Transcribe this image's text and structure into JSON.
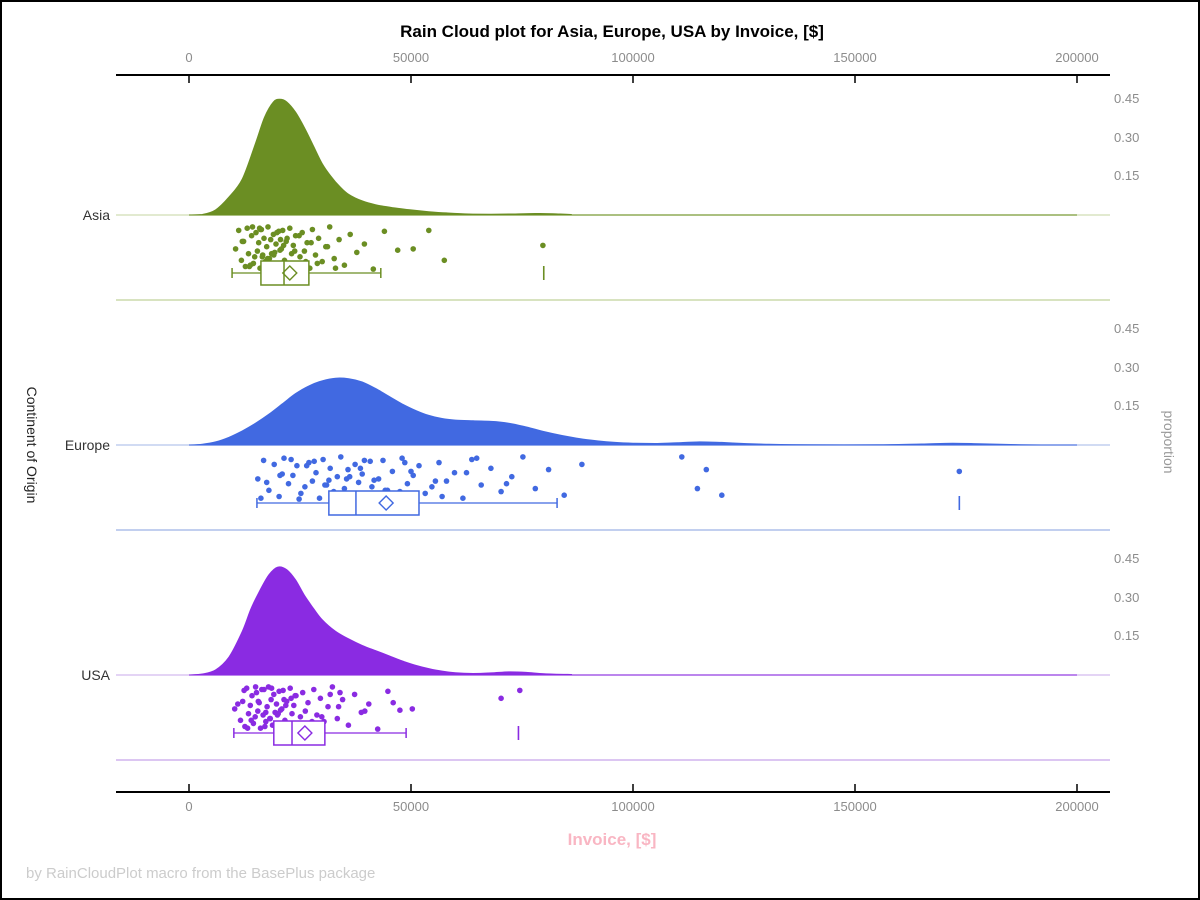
{
  "title": "Rain Cloud plot for Asia, Europe, USA by Invoice, [$]",
  "x_axis": {
    "label": "Invoice, [$]",
    "tick_labels": [
      "0",
      "50000",
      "100000",
      "150000",
      "200000"
    ],
    "tick_values": [
      0,
      50000,
      100000,
      150000,
      200000
    ],
    "min": 0,
    "max": 200000
  },
  "y_axis": {
    "label": "Continent of Origin",
    "categories": [
      "Asia",
      "Europe",
      "USA"
    ]
  },
  "y2_axis": {
    "label": "proportion",
    "tick_labels": [
      "0.45",
      "0.30",
      "0.15"
    ],
    "tick_values": [
      0.45,
      0.3,
      0.15
    ]
  },
  "footer": "by RainCloudPlot macro from the BasePlus package",
  "colors": {
    "asia": "#6B8E23",
    "asia_light": "#D8E3C0",
    "europe": "#4169E1",
    "europe_light": "#C2CFEF",
    "usa": "#8A2BE2",
    "usa_light": "#DCC6F2",
    "tick_text": "#8C8C8C",
    "category_text": "#333333",
    "x_label_pink": "#F9B6C3",
    "footer_gray": "#CCCCCC",
    "axis_line": "#000000",
    "background": "#FFFFFF"
  },
  "chart_data": {
    "type": "raincloud (half-violin density + jittered rain points + box plot with mean diamond)",
    "x_unit": "USD",
    "xlim": [
      0,
      200000
    ],
    "proportion_ticks": [
      0.15,
      0.3,
      0.45
    ],
    "rain_jitter_cycle": [
      0.52,
      0.1,
      0.78,
      0.35,
      0.92,
      0.05,
      0.63,
      0.44,
      0.22,
      0.85,
      0.7,
      0.15,
      0.57,
      0.38,
      0.96,
      0.08,
      0.66,
      0.28,
      0.81,
      0.47,
      0.02,
      0.74,
      0.31,
      0.89,
      0.19,
      0.6,
      0.41,
      0.98,
      0.12,
      0.55
    ],
    "groups": [
      {
        "name": "Asia",
        "color": "#6B8E23",
        "color_light": "#D8E3C0",
        "density": [
          [
            0,
            0
          ],
          [
            3000,
            0.002
          ],
          [
            6000,
            0.02
          ],
          [
            9000,
            0.07
          ],
          [
            12000,
            0.14
          ],
          [
            15000,
            0.28
          ],
          [
            17000,
            0.38
          ],
          [
            19000,
            0.44
          ],
          [
            20500,
            0.45
          ],
          [
            22000,
            0.44
          ],
          [
            24000,
            0.4
          ],
          [
            26000,
            0.34
          ],
          [
            28000,
            0.27
          ],
          [
            30000,
            0.2
          ],
          [
            32000,
            0.15
          ],
          [
            34000,
            0.11
          ],
          [
            36000,
            0.08
          ],
          [
            39000,
            0.055
          ],
          [
            42000,
            0.04
          ],
          [
            46000,
            0.028
          ],
          [
            50000,
            0.02
          ],
          [
            54000,
            0.013
          ],
          [
            58000,
            0.008
          ],
          [
            63000,
            0.004
          ],
          [
            68000,
            0.003
          ],
          [
            73000,
            0.004
          ],
          [
            78000,
            0.006
          ],
          [
            82000,
            0.005
          ],
          [
            86000,
            0.002
          ],
          [
            92000,
            0
          ],
          [
            200000,
            0
          ]
        ],
        "box": {
          "whisker_low": 9700,
          "q1": 16200,
          "median": 21400,
          "q3": 27000,
          "whisker_high": 43200,
          "mean": 22700,
          "far_outliers": [
            79900
          ]
        },
        "rain_values": [
          10500,
          11200,
          11800,
          12300,
          12700,
          13100,
          13400,
          79700,
          14100,
          14500,
          14800,
          15100,
          15400,
          15700,
          16000,
          16300,
          16600,
          16900,
          17200,
          17500,
          17800,
          18100,
          18400,
          18700,
          19000,
          19300,
          19600,
          19900,
          20200,
          20500,
          20800,
          21100,
          21500,
          21900,
          22300,
          22700,
          23100,
          23500,
          24000,
          24500,
          25000,
          25500,
          26000,
          26600,
          27200,
          27800,
          28500,
          29200,
          30000,
          30800,
          31700,
          32700,
          33800,
          35000,
          36300,
          37800,
          39500,
          41500,
          44000,
          47000,
          50500,
          54000,
          57500,
          12000,
          13600,
          15900,
          18600,
          21300,
          24800,
          28900,
          16500,
          19800,
          23800,
          27500,
          33000,
          16100,
          19100,
          22100,
          26300,
          31200,
          14300,
          17700,
          20600,
          13800
        ]
      },
      {
        "name": "Europe",
        "color": "#4169E1",
        "color_light": "#C2CFEF",
        "density": [
          [
            0,
            0
          ],
          [
            3000,
            0.003
          ],
          [
            6000,
            0.012
          ],
          [
            9000,
            0.03
          ],
          [
            12000,
            0.055
          ],
          [
            15000,
            0.085
          ],
          [
            18000,
            0.12
          ],
          [
            21000,
            0.16
          ],
          [
            24000,
            0.2
          ],
          [
            27000,
            0.23
          ],
          [
            30000,
            0.25
          ],
          [
            33000,
            0.26
          ],
          [
            36000,
            0.258
          ],
          [
            39000,
            0.245
          ],
          [
            42000,
            0.22
          ],
          [
            45000,
            0.19
          ],
          [
            48000,
            0.16
          ],
          [
            51000,
            0.135
          ],
          [
            54000,
            0.115
          ],
          [
            57000,
            0.103
          ],
          [
            60000,
            0.097
          ],
          [
            64000,
            0.094
          ],
          [
            68000,
            0.092
          ],
          [
            72000,
            0.085
          ],
          [
            76000,
            0.07
          ],
          [
            80000,
            0.052
          ],
          [
            84000,
            0.037
          ],
          [
            88000,
            0.025
          ],
          [
            92000,
            0.016
          ],
          [
            96000,
            0.01
          ],
          [
            100000,
            0.007
          ],
          [
            105000,
            0.006
          ],
          [
            110000,
            0.009
          ],
          [
            115000,
            0.012
          ],
          [
            120000,
            0.01
          ],
          [
            125000,
            0.006
          ],
          [
            130000,
            0.003
          ],
          [
            140000,
            0.001
          ],
          [
            155000,
            0.001
          ],
          [
            165000,
            0.004
          ],
          [
            172000,
            0.007
          ],
          [
            178000,
            0.005
          ],
          [
            185000,
            0.002
          ],
          [
            192000,
            0
          ],
          [
            200000,
            0
          ]
        ],
        "box": {
          "whisker_low": 15300,
          "q1": 31500,
          "median": 37600,
          "q3": 51800,
          "whisker_high": 82900,
          "mean": 44400,
          "far_outliers": [
            173500
          ]
        },
        "rain_values": [
          15500,
          16800,
          18000,
          173500,
          20300,
          21400,
          22400,
          23400,
          24300,
          25200,
          26100,
          27000,
          27800,
          28600,
          29400,
          30200,
          31000,
          31800,
          32600,
          33400,
          34200,
          35000,
          35800,
          36600,
          37400,
          38200,
          39000,
          39900,
          40800,
          41700,
          42700,
          43700,
          44700,
          45800,
          46900,
          48000,
          49200,
          50500,
          51800,
          53200,
          54700,
          56300,
          58000,
          59800,
          61700,
          63700,
          65800,
          68000,
          70300,
          72700,
          75200,
          78000,
          81000,
          84500,
          88500,
          17500,
          21000,
          24800,
          28200,
          31500,
          35500,
          39500,
          44200,
          50000,
          57000,
          64800,
          71500,
          20500,
          26500,
          33800,
          41200,
          48600,
          55500,
          62500,
          16200,
          23000,
          30600,
          38600,
          47500,
          36200,
          111000,
          114500,
          116500,
          120000,
          19200
        ]
      },
      {
        "name": "USA",
        "color": "#8A2BE2",
        "color_light": "#DCC6F2",
        "density": [
          [
            0,
            0
          ],
          [
            3000,
            0.004
          ],
          [
            6000,
            0.02
          ],
          [
            9000,
            0.07
          ],
          [
            12000,
            0.17
          ],
          [
            14000,
            0.26
          ],
          [
            16000,
            0.33
          ],
          [
            18000,
            0.39
          ],
          [
            20000,
            0.42
          ],
          [
            22000,
            0.41
          ],
          [
            24000,
            0.37
          ],
          [
            26000,
            0.31
          ],
          [
            28000,
            0.26
          ],
          [
            30000,
            0.215
          ],
          [
            33000,
            0.17
          ],
          [
            36000,
            0.14
          ],
          [
            39000,
            0.115
          ],
          [
            42000,
            0.095
          ],
          [
            45000,
            0.075
          ],
          [
            48000,
            0.055
          ],
          [
            51000,
            0.038
          ],
          [
            54000,
            0.025
          ],
          [
            57000,
            0.015
          ],
          [
            60000,
            0.009
          ],
          [
            64000,
            0.006
          ],
          [
            68000,
            0.008
          ],
          [
            72000,
            0.012
          ],
          [
            76000,
            0.01
          ],
          [
            80000,
            0.005
          ],
          [
            86000,
            0.002
          ],
          [
            92000,
            0
          ],
          [
            200000,
            0
          ]
        ],
        "box": {
          "whisker_low": 10100,
          "q1": 19100,
          "median": 23200,
          "q3": 30600,
          "whisker_high": 48900,
          "mean": 26100,
          "far_outliers": [
            74200
          ]
        },
        "rain_values": [
          10300,
          74500,
          11600,
          12100,
          12600,
          13000,
          13400,
          13800,
          14200,
          14500,
          14900,
          15200,
          15500,
          15800,
          16100,
          16400,
          16700,
          70300,
          17300,
          17600,
          17900,
          18200,
          18500,
          18800,
          19100,
          19400,
          19700,
          20000,
          20300,
          20600,
          20900,
          21200,
          21600,
          22000,
          22400,
          22800,
          23200,
          23600,
          24100,
          24600,
          25100,
          25600,
          26200,
          26800,
          27400,
          28100,
          28800,
          29600,
          30400,
          31300,
          32300,
          33400,
          34600,
          35900,
          37300,
          38800,
          40500,
          42500,
          44800,
          47500,
          50300,
          12400,
          14000,
          15600,
          17100,
          18600,
          20100,
          21800,
          23900,
          26500,
          29900,
          34000,
          39600,
          46000,
          13200,
          16900,
          19900,
          23000,
          27700,
          33700,
          15000,
          18300,
          21400,
          25300,
          31800,
          17300,
          11000
        ]
      }
    ]
  }
}
